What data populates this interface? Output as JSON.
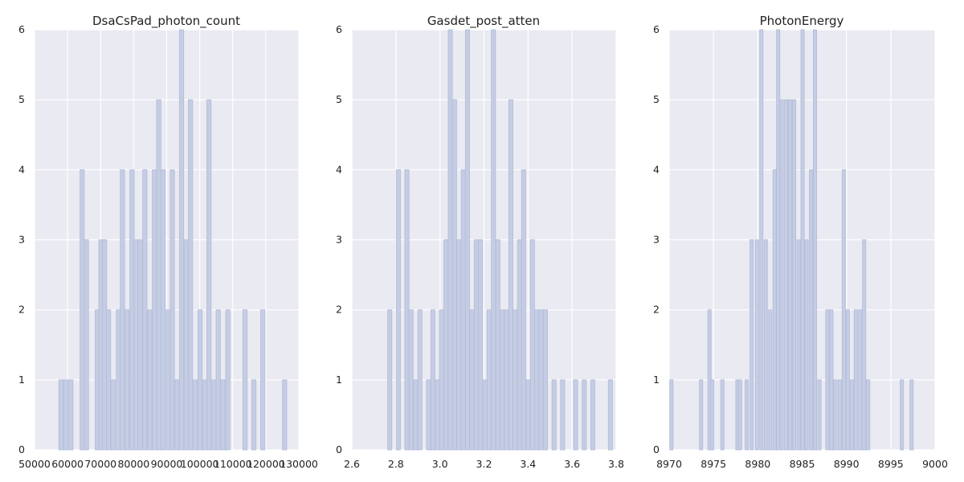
{
  "colors": {
    "background": "#ffffff",
    "plot_bg": "#eaeaf2",
    "grid": "#ffffff",
    "bar_fill": "#c5cde4",
    "bar_edge": "#b3bcd8"
  },
  "chart_data": [
    {
      "type": "bar",
      "title": "DsaCsPad_photon_count",
      "xlabel": "",
      "ylabel": "",
      "xlim": [
        50000,
        130000
      ],
      "ylim": [
        0,
        6
      ],
      "grid": true,
      "bar_width": 1300,
      "xticks": [
        50000,
        60000,
        70000,
        80000,
        90000,
        100000,
        110000,
        120000,
        130000
      ],
      "xtick_labels": [
        "50000",
        "60000",
        "70000",
        "80000",
        "90000",
        "100000",
        "110000",
        "120000",
        "130000"
      ],
      "yticks": [
        0,
        1,
        2,
        3,
        4,
        5,
        6
      ],
      "ytick_labels": [
        "0",
        "1",
        "2",
        "3",
        "4",
        "5",
        "6"
      ],
      "x": [
        58000,
        59400,
        61000,
        64400,
        65700,
        69000,
        70100,
        71200,
        72400,
        73800,
        75400,
        76600,
        78000,
        79500,
        80700,
        82000,
        83400,
        84900,
        86300,
        87600,
        88900,
        90500,
        91700,
        93100,
        94500,
        95900,
        97200,
        98700,
        100100,
        101500,
        102800,
        104300,
        105600,
        107000,
        108500,
        113700,
        116400,
        119100,
        125700
      ],
      "values": [
        1,
        1,
        1,
        4,
        3,
        2,
        3,
        3,
        2,
        1,
        2,
        4,
        2,
        4,
        3,
        3,
        4,
        2,
        4,
        5,
        4,
        2,
        4,
        1,
        6,
        3,
        5,
        1,
        2,
        1,
        5,
        1,
        2,
        1,
        2,
        2,
        1,
        2,
        1
      ]
    },
    {
      "type": "bar",
      "title": "Gasdet_post_atten",
      "xlabel": "",
      "ylabel": "",
      "xlim": [
        2.6,
        3.8
      ],
      "ylim": [
        0,
        6
      ],
      "grid": true,
      "bar_width": 0.019,
      "xticks": [
        2.6,
        2.8,
        3.0,
        3.2,
        3.4,
        3.6,
        3.8
      ],
      "xtick_labels": [
        "2.6",
        "2.8",
        "3.0",
        "3.2",
        "3.4",
        "3.6",
        "3.8"
      ],
      "yticks": [
        0,
        1,
        2,
        3,
        4,
        5,
        6
      ],
      "ytick_labels": [
        "0",
        "1",
        "2",
        "3",
        "4",
        "5",
        "6"
      ],
      "x": [
        2.772,
        2.811,
        2.85,
        2.869,
        2.889,
        2.909,
        2.948,
        2.968,
        2.988,
        3.007,
        3.027,
        3.047,
        3.066,
        3.086,
        3.106,
        3.125,
        3.145,
        3.165,
        3.184,
        3.204,
        3.223,
        3.243,
        3.263,
        3.282,
        3.302,
        3.322,
        3.341,
        3.361,
        3.38,
        3.4,
        3.42,
        3.439,
        3.459,
        3.479,
        3.518,
        3.557,
        3.616,
        3.655,
        3.694,
        3.774
      ],
      "values": [
        2,
        4,
        4,
        2,
        1,
        2,
        1,
        2,
        1,
        2,
        3,
        6,
        5,
        3,
        4,
        6,
        2,
        3,
        3,
        1,
        2,
        6,
        3,
        2,
        2,
        5,
        2,
        3,
        4,
        1,
        3,
        2,
        2,
        2,
        1,
        1,
        1,
        1,
        1,
        1
      ]
    },
    {
      "type": "bar",
      "title": "PhotonEnergy",
      "xlabel": "",
      "ylabel": "",
      "xlim": [
        8970,
        9000
      ],
      "ylim": [
        0,
        6
      ],
      "grid": true,
      "bar_width": 0.38,
      "xticks": [
        8970,
        8975,
        8980,
        8985,
        8990,
        8995,
        9000
      ],
      "xtick_labels": [
        "8970",
        "8975",
        "8980",
        "8985",
        "8990",
        "8995",
        "9000"
      ],
      "yticks": [
        0,
        1,
        2,
        3,
        4,
        5,
        6
      ],
      "ytick_labels": [
        "0",
        "1",
        "2",
        "3",
        "4",
        "5",
        "6"
      ],
      "x": [
        8970.25,
        8973.6,
        8974.55,
        8974.85,
        8976.0,
        8977.7,
        8978.0,
        8978.75,
        8979.3,
        8979.9,
        8980.4,
        8980.9,
        8981.4,
        8981.9,
        8982.3,
        8982.7,
        8983.2,
        8983.65,
        8984.1,
        8984.6,
        8985.05,
        8985.5,
        8986.0,
        8986.45,
        8986.95,
        8987.85,
        8988.3,
        8988.75,
        8989.25,
        8989.7,
        8990.15,
        8990.6,
        8991.05,
        8991.55,
        8992.0,
        8992.45,
        8996.25,
        8997.35
      ],
      "values": [
        1,
        1,
        2,
        1,
        1,
        1,
        1,
        1,
        3,
        3,
        6,
        3,
        2,
        4,
        6,
        5,
        5,
        5,
        5,
        3,
        6,
        3,
        4,
        6,
        1,
        2,
        2,
        1,
        1,
        4,
        2,
        1,
        2,
        2,
        3,
        1,
        1,
        1
      ]
    }
  ]
}
